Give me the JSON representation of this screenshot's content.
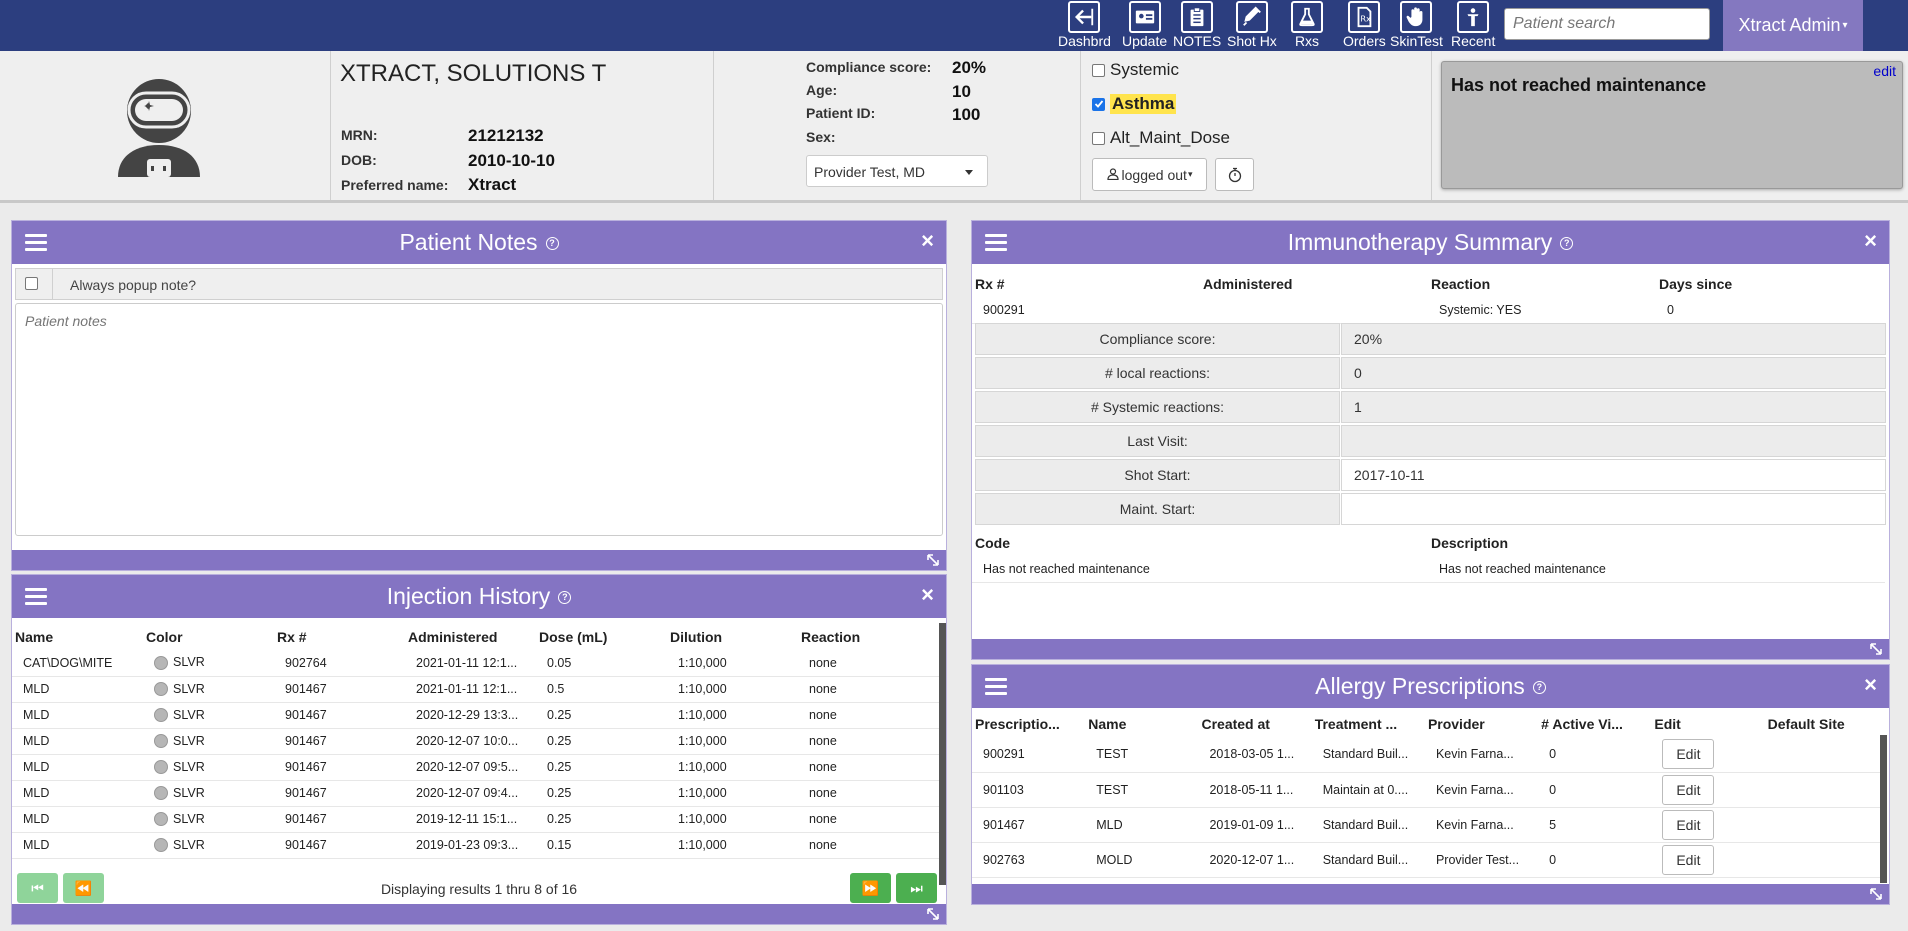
{
  "nav": {
    "buttons": [
      {
        "label": "Dashbrd",
        "icon": "arrow-left-icon"
      },
      {
        "label": "Update",
        "icon": "id-card-icon"
      },
      {
        "label": "NOTES",
        "icon": "clipboard-icon"
      },
      {
        "label": "Shot Hx",
        "icon": "syringe-icon"
      },
      {
        "label": "Rxs",
        "icon": "flask-icon"
      },
      {
        "label": "Orders",
        "icon": "prescription-icon"
      },
      {
        "label": "SkinTest",
        "icon": "hand-icon"
      },
      {
        "label": "Recent",
        "icon": "person-icon"
      }
    ],
    "search_placeholder": "Patient search",
    "admin_label": "Xtract Admin"
  },
  "patient": {
    "name": "XTRACT, SOLUTIONS T",
    "mrn_label": "MRN:",
    "mrn": "21212132",
    "dob_label": "DOB:",
    "dob": "2010-10-10",
    "preferred_label": "Preferred name:",
    "preferred": "Xtract",
    "compliance_label": "Compliance score:",
    "compliance": "20%",
    "age_label": "Age:",
    "age": "10",
    "pid_label": "Patient ID:",
    "pid": "100",
    "sex_label": "Sex:",
    "sex": "",
    "provider": "Provider Test, MD"
  },
  "flags": {
    "systemic": "Systemic",
    "asthma": "Asthma",
    "alt_maint": "Alt_Maint_Dose",
    "logged_out": "logged out"
  },
  "maintenance": {
    "text": "Has not reached maintenance",
    "edit": "edit"
  },
  "notes_panel": {
    "title": "Patient Notes",
    "popup_label": "Always popup note?",
    "placeholder": "Patient notes"
  },
  "injection_panel": {
    "title": "Injection History",
    "columns": [
      "Name",
      "Color",
      "Rx #",
      "Administered",
      "Dose (mL)",
      "Dilution",
      "Reaction"
    ],
    "rows": [
      [
        "CAT\\DOG\\MITE",
        "SLVR",
        "902764",
        "2021-01-11 12:1...",
        "0.05",
        "1:10,000",
        "none"
      ],
      [
        "MLD",
        "SLVR",
        "901467",
        "2021-01-11 12:1...",
        "0.5",
        "1:10,000",
        "none"
      ],
      [
        "MLD",
        "SLVR",
        "901467",
        "2020-12-29 13:3...",
        "0.25",
        "1:10,000",
        "none"
      ],
      [
        "MLD",
        "SLVR",
        "901467",
        "2020-12-07 10:0...",
        "0.25",
        "1:10,000",
        "none"
      ],
      [
        "MLD",
        "SLVR",
        "901467",
        "2020-12-07 09:5...",
        "0.25",
        "1:10,000",
        "none"
      ],
      [
        "MLD",
        "SLVR",
        "901467",
        "2020-12-07 09:4...",
        "0.25",
        "1:10,000",
        "none"
      ],
      [
        "MLD",
        "SLVR",
        "901467",
        "2019-12-11 15:1...",
        "0.25",
        "1:10,000",
        "none"
      ],
      [
        "MLD",
        "SLVR",
        "901467",
        "2019-01-23 09:3...",
        "0.15",
        "1:10,000",
        "none"
      ]
    ],
    "paging": "Displaying results 1 thru 8 of 16"
  },
  "immuno_panel": {
    "title": "Immunotherapy Summary",
    "columns": [
      "Rx #",
      "Administered",
      "Reaction",
      "Days since"
    ],
    "row": [
      "900291",
      "",
      "Systemic: YES",
      "0"
    ],
    "summary": [
      {
        "label": "Compliance score:",
        "value": "20%"
      },
      {
        "label": "# local reactions:",
        "value": "0"
      },
      {
        "label": "# Systemic reactions:",
        "value": "1"
      },
      {
        "label": "Last Visit:",
        "value": ""
      },
      {
        "label": "Shot Start:",
        "value": "2017-10-11"
      },
      {
        "label": "Maint. Start:",
        "value": ""
      }
    ],
    "code_columns": [
      "Code",
      "Description"
    ],
    "code_row": [
      "Has not reached maintenance",
      "Has not reached maintenance"
    ]
  },
  "rx_panel": {
    "title": "Allergy Prescriptions",
    "columns": [
      "Prescriptio...",
      "Name",
      "Created at",
      "Treatment ...",
      "Provider",
      "# Active Vi...",
      "Edit",
      "Default Site"
    ],
    "rows": [
      [
        "900291",
        "TEST",
        "2018-03-05 1...",
        "Standard Buil...",
        "Kevin Farna...",
        "0"
      ],
      [
        "901103",
        "TEST",
        "2018-05-11 1...",
        "Maintain at 0....",
        "Kevin Farna...",
        "0"
      ],
      [
        "901467",
        "MLD",
        "2019-01-09 1...",
        "Standard Buil...",
        "Kevin Farna...",
        "5"
      ],
      [
        "902763",
        "MOLD",
        "2020-12-07 1...",
        "Standard Buil...",
        "Provider Test...",
        "0"
      ]
    ],
    "edit_label": "Edit"
  },
  "colors": {
    "nav": "#2c3e7f",
    "panel_header": "#8474c3",
    "admin": "#8478c0",
    "pager_enabled": "#4caf50",
    "pager_disabled": "#8fd49a",
    "highlight": "#ffe44d"
  }
}
